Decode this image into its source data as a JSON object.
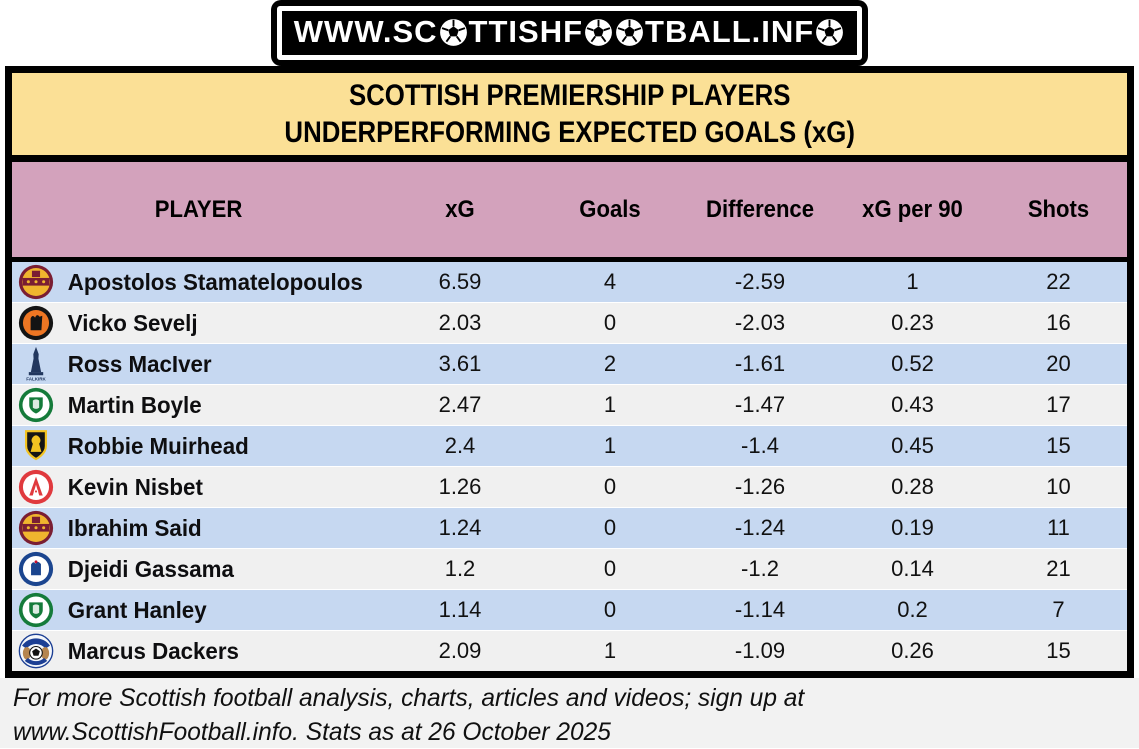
{
  "banner": {
    "text": "WWW.SC⚽TTISHF⚽⚽TBALL.INF⚽"
  },
  "title": {
    "line1": "SCOTTISH PREMIERSHIP PLAYERS",
    "line2": "UNDERPERFORMING EXPECTED GOALS (xG)"
  },
  "table": {
    "columns": [
      "PLAYER",
      "xG",
      "Goals",
      "Difference",
      "xG per 90",
      "Shots"
    ],
    "rows": [
      {
        "club_icon": "motherwell-crest",
        "player": "Apostolos Stamatelopoulos",
        "xg": "6.59",
        "goals": "4",
        "difference": "-2.59",
        "xg_per_90": "1",
        "shots": "22"
      },
      {
        "club_icon": "dundee-united-crest",
        "player": "Vicko Sevelj",
        "xg": "2.03",
        "goals": "0",
        "difference": "-2.03",
        "xg_per_90": "0.23",
        "shots": "16"
      },
      {
        "club_icon": "falkirk-crest",
        "player": "Ross MacIver",
        "xg": "3.61",
        "goals": "2",
        "difference": "-1.61",
        "xg_per_90": "0.52",
        "shots": "20"
      },
      {
        "club_icon": "hibernian-crest",
        "player": "Martin Boyle",
        "xg": "2.47",
        "goals": "1",
        "difference": "-1.47",
        "xg_per_90": "0.43",
        "shots": "17"
      },
      {
        "club_icon": "livingston-crest",
        "player": "Robbie Muirhead",
        "xg": "2.4",
        "goals": "1",
        "difference": "-1.4",
        "xg_per_90": "0.45",
        "shots": "15"
      },
      {
        "club_icon": "aberdeen-crest",
        "player": "Kevin Nisbet",
        "xg": "1.26",
        "goals": "0",
        "difference": "-1.26",
        "xg_per_90": "0.28",
        "shots": "10"
      },
      {
        "club_icon": "motherwell-crest",
        "player": "Ibrahim Said",
        "xg": "1.24",
        "goals": "0",
        "difference": "-1.24",
        "xg_per_90": "0.19",
        "shots": "11"
      },
      {
        "club_icon": "rangers-crest",
        "player": "Djeidi Gassama",
        "xg": "1.2",
        "goals": "0",
        "difference": "-1.2",
        "xg_per_90": "0.14",
        "shots": "21"
      },
      {
        "club_icon": "hibernian-crest",
        "player": "Grant Hanley",
        "xg": "1.14",
        "goals": "0",
        "difference": "-1.14",
        "xg_per_90": "0.2",
        "shots": "7"
      },
      {
        "club_icon": "kilmarnock-crest",
        "player": "Marcus Dackers",
        "xg": "2.09",
        "goals": "1",
        "difference": "-1.09",
        "xg_per_90": "0.26",
        "shots": "15"
      }
    ]
  },
  "chart_data": {
    "type": "table",
    "title": "SCOTTISH PREMIERSHIP PLAYERS UNDERPERFORMING EXPECTED GOALS (xG)",
    "columns": [
      "PLAYER",
      "xG",
      "Goals",
      "Difference",
      "xG per 90",
      "Shots"
    ],
    "rows": [
      [
        "Apostolos Stamatelopoulos",
        6.59,
        4,
        -2.59,
        1,
        22
      ],
      [
        "Vicko Sevelj",
        2.03,
        0,
        -2.03,
        0.23,
        16
      ],
      [
        "Ross MacIver",
        3.61,
        2,
        -1.61,
        0.52,
        20
      ],
      [
        "Martin Boyle",
        2.47,
        1,
        -1.47,
        0.43,
        17
      ],
      [
        "Robbie Muirhead",
        2.4,
        1,
        -1.4,
        0.45,
        15
      ],
      [
        "Kevin Nisbet",
        1.26,
        0,
        -1.26,
        0.28,
        10
      ],
      [
        "Ibrahim Said",
        1.24,
        0,
        -1.24,
        0.19,
        11
      ],
      [
        "Djeidi Gassama",
        1.2,
        0,
        -1.2,
        0.14,
        21
      ],
      [
        "Grant Hanley",
        1.14,
        0,
        -1.14,
        0.2,
        7
      ],
      [
        "Marcus Dackers",
        2.09,
        1,
        -1.09,
        0.26,
        15
      ]
    ]
  },
  "footer": {
    "line1": "For more Scottish football analysis, charts, articles and videos; sign up at",
    "line2": "www.ScottishFootball.info. Stats as at 26 October 2025"
  },
  "colors": {
    "title_bg": "#FBE096",
    "header_bg": "#D3A2BC",
    "row_blue": "#C6D8F1",
    "row_white": "#F0F0F0",
    "footer_bg": "#F2F2F2",
    "border": "#000000",
    "banner_bg": "#000000",
    "banner_text": "#FFFFFF"
  }
}
